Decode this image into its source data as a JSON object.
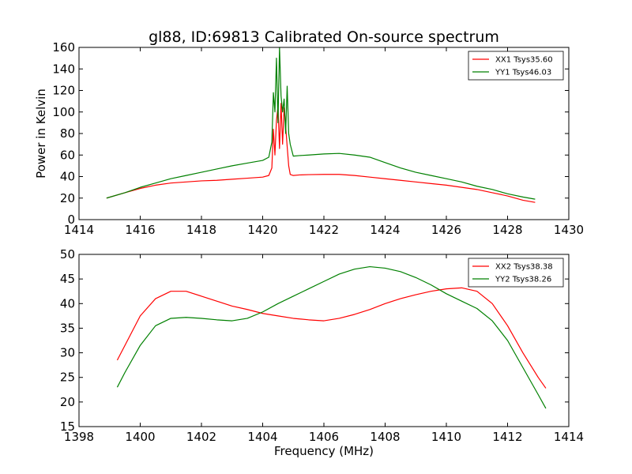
{
  "title": "gl88, ID:69813 Calibrated On-source spectrum",
  "colors": {
    "xx": "#ff0000",
    "yy": "#008000"
  },
  "chart_data": [
    {
      "type": "line",
      "title": "gl88, ID:69813 Calibrated On-source spectrum",
      "xlabel": "",
      "ylabel": "Power in Kelvin",
      "xlim": [
        1414,
        1430
      ],
      "ylim": [
        0,
        160
      ],
      "xticks": [
        1414,
        1416,
        1418,
        1420,
        1422,
        1424,
        1426,
        1428,
        1430
      ],
      "yticks": [
        0,
        20,
        40,
        60,
        80,
        100,
        120,
        140,
        160
      ],
      "legend_position": "top-right",
      "grid": false,
      "series": [
        {
          "name": "XX1 Tsys35.60",
          "color": "#ff0000",
          "x": [
            1414.9,
            1415.5,
            1416.0,
            1416.5,
            1417.0,
            1417.5,
            1418.0,
            1418.5,
            1419.0,
            1419.5,
            1420.0,
            1420.2,
            1420.3,
            1420.35,
            1420.4,
            1420.45,
            1420.5,
            1420.55,
            1420.6,
            1420.65,
            1420.7,
            1420.75,
            1420.8,
            1420.85,
            1420.9,
            1421.0,
            1421.2,
            1421.5,
            1422.0,
            1422.5,
            1423.0,
            1423.5,
            1424.0,
            1424.5,
            1425.0,
            1425.5,
            1426.0,
            1426.5,
            1427.0,
            1427.5,
            1428.0,
            1428.5,
            1428.9
          ],
          "values": [
            20,
            25,
            29,
            32,
            34,
            35,
            36,
            36.5,
            37.5,
            38.5,
            39.5,
            41,
            48,
            84,
            60,
            92,
            105,
            66,
            108,
            70,
            104,
            87,
            68,
            50,
            42,
            41,
            41.5,
            41.8,
            42,
            42,
            41,
            39.5,
            38,
            36.5,
            35,
            33.5,
            32,
            30,
            28,
            25,
            22,
            18,
            16
          ]
        },
        {
          "name": "YY1 Tsys46.03",
          "color": "#008000",
          "x": [
            1414.9,
            1415.5,
            1416.0,
            1416.5,
            1417.0,
            1417.5,
            1418.0,
            1418.5,
            1419.0,
            1419.5,
            1420.0,
            1420.2,
            1420.3,
            1420.35,
            1420.4,
            1420.45,
            1420.5,
            1420.55,
            1420.6,
            1420.65,
            1420.7,
            1420.75,
            1420.8,
            1420.85,
            1420.9,
            1421.0,
            1421.2,
            1421.5,
            1422.0,
            1422.5,
            1423.0,
            1423.5,
            1424.0,
            1424.5,
            1425.0,
            1425.5,
            1426.0,
            1426.5,
            1427.0,
            1427.5,
            1428.0,
            1428.5,
            1428.9
          ],
          "values": [
            20,
            25,
            30,
            34,
            38,
            41,
            44,
            47,
            50,
            52.5,
            55,
            58,
            72,
            118,
            100,
            150,
            90,
            160,
            115,
            100,
            112,
            80,
            124,
            80,
            70,
            59,
            59.5,
            60,
            61,
            61.5,
            60,
            58,
            53,
            48,
            44,
            41,
            38,
            35,
            31,
            28,
            24,
            21,
            19
          ]
        }
      ]
    },
    {
      "type": "line",
      "title": "",
      "xlabel": "Frequency (MHz)",
      "ylabel": "",
      "xlim": [
        1398,
        1414
      ],
      "ylim": [
        15,
        50
      ],
      "xticks": [
        1398,
        1400,
        1402,
        1404,
        1406,
        1408,
        1410,
        1412,
        1414
      ],
      "yticks": [
        15,
        20,
        25,
        30,
        35,
        40,
        45,
        50
      ],
      "legend_position": "top-right",
      "grid": false,
      "series": [
        {
          "name": "XX2 Tsys38.38",
          "color": "#ff0000",
          "x": [
            1399.25,
            1399.5,
            1400.0,
            1400.5,
            1401.0,
            1401.5,
            1402.0,
            1402.5,
            1403.0,
            1403.5,
            1404.0,
            1404.5,
            1405.0,
            1405.5,
            1406.0,
            1406.5,
            1407.0,
            1407.5,
            1408.0,
            1408.5,
            1409.0,
            1409.5,
            1410.0,
            1410.5,
            1411.0,
            1411.5,
            1412.0,
            1412.5,
            1413.0,
            1413.25
          ],
          "values": [
            28.5,
            31.5,
            37.5,
            41,
            42.5,
            42.5,
            41.5,
            40.5,
            39.5,
            38.8,
            38,
            37.5,
            37,
            36.7,
            36.5,
            37,
            37.8,
            38.8,
            40,
            41,
            41.8,
            42.5,
            43,
            43.2,
            42.5,
            40,
            35.5,
            30,
            25,
            22.8
          ]
        },
        {
          "name": "YY2 Tsys38.26",
          "color": "#008000",
          "x": [
            1399.25,
            1399.5,
            1400.0,
            1400.5,
            1401.0,
            1401.5,
            1402.0,
            1402.5,
            1403.0,
            1403.5,
            1404.0,
            1404.5,
            1405.0,
            1405.5,
            1406.0,
            1406.5,
            1407.0,
            1407.5,
            1408.0,
            1408.5,
            1409.0,
            1409.5,
            1410.0,
            1410.5,
            1411.0,
            1411.5,
            1412.0,
            1412.5,
            1413.0,
            1413.25
          ],
          "values": [
            23,
            26,
            31.5,
            35.5,
            37,
            37.2,
            37,
            36.7,
            36.5,
            37,
            38.3,
            40,
            41.5,
            43,
            44.5,
            46,
            47,
            47.5,
            47.2,
            46.5,
            45.3,
            43.8,
            42,
            40.5,
            39,
            36.5,
            32.5,
            27,
            21.5,
            18.7
          ]
        }
      ]
    }
  ]
}
